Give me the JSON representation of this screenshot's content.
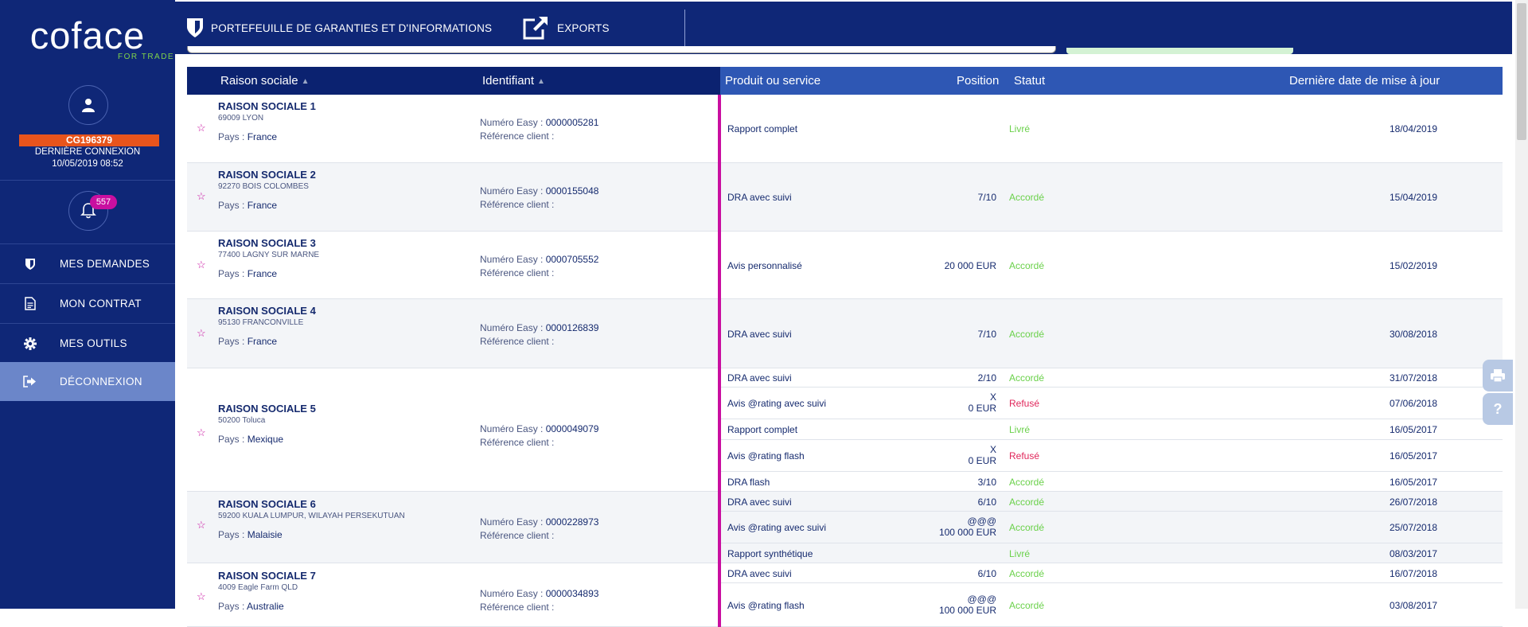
{
  "sidebar": {
    "logo": {
      "brand": "coface",
      "tagline": "FOR TRADE"
    },
    "user": {
      "id": "CG196379",
      "last_connection_label": "DERNIÈRE CONNEXION",
      "last_connection_date": "10/05/2019 08:52"
    },
    "notifications": {
      "count": "557"
    },
    "nav": [
      {
        "label": "MES DEMANDES",
        "icon": "shield-icon"
      },
      {
        "label": "MON CONTRAT",
        "icon": "document-icon"
      },
      {
        "label": "MES OUTILS",
        "icon": "gear-icon"
      },
      {
        "label": "DÉCONNEXION",
        "icon": "logout-icon",
        "active": true
      }
    ]
  },
  "topbar": {
    "portfolio_label": "PORTEFEUILLE DE GARANTIES ET D'INFORMATIONS",
    "exports_label": "EXPORTS"
  },
  "table": {
    "headers": {
      "raison_sociale": "Raison sociale",
      "identifiant": "Identifiant",
      "produit": "Produit ou service",
      "position": "Position",
      "statut": "Statut",
      "date": "Dernière date de mise à jour"
    },
    "pays_label": "Pays :",
    "numero_label": "Numéro Easy :",
    "reference_label": "Référence client :",
    "companies": [
      {
        "name": "RAISON SOCIALE 1",
        "address": "69009 LYON",
        "country": "France",
        "numero": "0000005281",
        "rows": [
          {
            "product": "Rapport complet",
            "position": "",
            "status": "Livré",
            "date": "18/04/2019"
          }
        ]
      },
      {
        "name": "RAISON SOCIALE 2",
        "address": "92270 BOIS COLOMBES",
        "country": "France",
        "numero": "0000155048",
        "rows": [
          {
            "product": "DRA avec suivi",
            "position": "7/10",
            "status": "Accordé",
            "date": "15/04/2019"
          }
        ]
      },
      {
        "name": "RAISON SOCIALE 3",
        "address": "77400 LAGNY SUR MARNE",
        "country": "France",
        "numero": "0000705552",
        "rows": [
          {
            "product": "Avis personnalisé",
            "position": "20 000 EUR",
            "status": "Accordé",
            "date": "15/02/2019"
          }
        ]
      },
      {
        "name": "RAISON SOCIALE 4",
        "address": "95130 FRANCONVILLE",
        "country": "France",
        "numero": "0000126839",
        "rows": [
          {
            "product": "DRA avec suivi",
            "position": "7/10",
            "status": "Accordé",
            "date": "30/08/2018"
          }
        ]
      },
      {
        "name": "RAISON SOCIALE 5",
        "address": "50200 Toluca",
        "country": "Mexique",
        "numero": "0000049079",
        "rows": [
          {
            "product": "DRA avec suivi",
            "position": "2/10",
            "status": "Accordé",
            "date": "31/07/2018"
          },
          {
            "product": "Avis @rating avec suivi",
            "position": "X",
            "position2": "0 EUR",
            "status": "Refusé",
            "date": "07/06/2018"
          },
          {
            "product": "Rapport complet",
            "position": "",
            "status": "Livré",
            "date": "16/05/2017"
          },
          {
            "product": "Avis @rating flash",
            "position": "X",
            "position2": "0 EUR",
            "status": "Refusé",
            "date": "16/05/2017"
          },
          {
            "product": "DRA flash",
            "position": "3/10",
            "status": "Accordé",
            "date": "16/05/2017"
          }
        ]
      },
      {
        "name": "RAISON SOCIALE 6",
        "address": "59200 KUALA LUMPUR, WILAYAH PERSEKUTUAN",
        "country": "Malaisie",
        "numero": "0000228973",
        "rows": [
          {
            "product": "DRA avec suivi",
            "position": "6/10",
            "status": "Accordé",
            "date": "26/07/2018"
          },
          {
            "product": "Avis @rating avec suivi",
            "position": "@@@",
            "position2": "100 000 EUR",
            "status": "Accordé",
            "date": "25/07/2018"
          },
          {
            "product": "Rapport synthétique",
            "position": "",
            "status": "Livré",
            "date": "08/03/2017"
          }
        ]
      },
      {
        "name": "RAISON SOCIALE 7",
        "address": "4009 Eagle Farm QLD",
        "country": "Australie",
        "numero": "0000034893",
        "rows": [
          {
            "product": "DRA avec suivi",
            "position": "6/10",
            "status": "Accordé",
            "date": "16/07/2018"
          },
          {
            "product": "Avis @rating flash",
            "position": "@@@",
            "position2": "100 000 EUR",
            "status": "Accordé",
            "date": "03/08/2017"
          }
        ]
      }
    ]
  },
  "colors": {
    "navy": "#0f2777",
    "header_blue": "#2e57b4",
    "accent_magenta": "#c90fa0",
    "user_orange": "#e8541c",
    "ok_green": "#6ad14a",
    "refused_red": "#e0265a"
  }
}
